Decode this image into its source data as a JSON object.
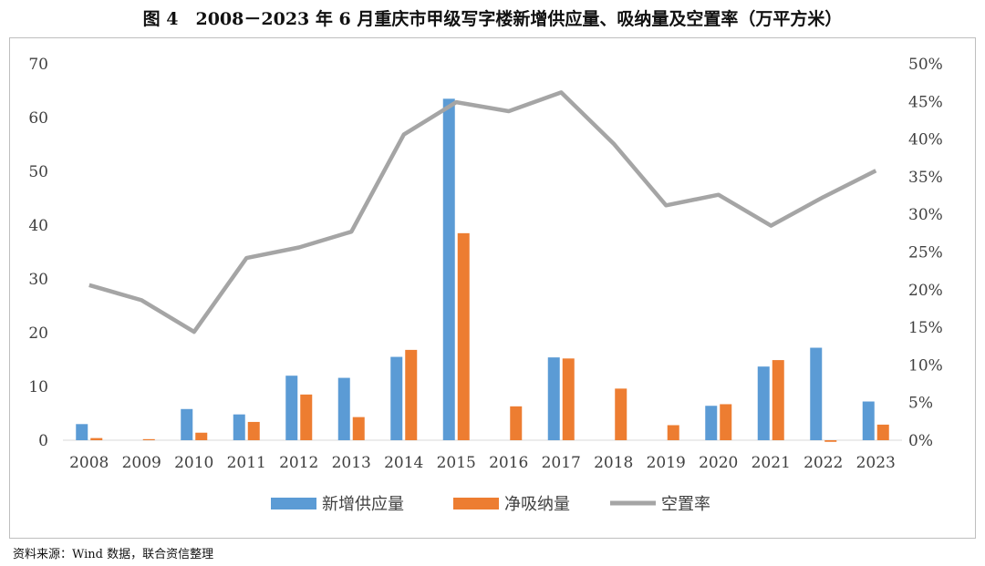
{
  "title": "图 4　2008－2023 年 6 月重庆市甲级写字楼新增供应量、吸纳量及空置率（万平方米）",
  "source": "资料来源：Wind 数据，联合资信整理",
  "chart_data": {
    "type": "bar",
    "categories": [
      "2008",
      "2009",
      "2010",
      "2011",
      "2012",
      "2013",
      "2014",
      "2015",
      "2016",
      "2017",
      "2018",
      "2019",
      "2020",
      "2021",
      "2022",
      "2023"
    ],
    "series": [
      {
        "name": "新增供应量",
        "type": "bar",
        "axis": "left",
        "color": "#5b9bd5",
        "values": [
          3.0,
          0,
          5.8,
          4.8,
          12.0,
          11.6,
          15.5,
          63.5,
          0,
          15.4,
          0,
          0,
          6.4,
          13.7,
          17.2,
          7.2
        ]
      },
      {
        "name": "净吸纳量",
        "type": "bar",
        "axis": "left",
        "color": "#ed7d31",
        "values": [
          0.4,
          0.2,
          1.4,
          3.4,
          8.5,
          4.3,
          16.8,
          38.5,
          6.3,
          15.2,
          9.6,
          2.8,
          6.7,
          14.9,
          -0.3,
          2.9
        ]
      },
      {
        "name": "空置率",
        "type": "line",
        "axis": "right",
        "color": "#a5a5a5",
        "values": [
          20.6,
          18.6,
          14.4,
          24.2,
          25.6,
          27.7,
          40.6,
          44.9,
          43.7,
          46.2,
          39.4,
          31.2,
          32.6,
          28.5,
          32.3,
          35.8
        ]
      }
    ],
    "y_left": {
      "min": 0,
      "max": 70,
      "ticks": [
        "0",
        "10",
        "20",
        "30",
        "40",
        "50",
        "60",
        "70"
      ]
    },
    "y_right": {
      "min": 0,
      "max": 50,
      "ticks": [
        "0%",
        "5%",
        "10%",
        "15%",
        "20%",
        "25%",
        "30%",
        "35%",
        "40%",
        "45%",
        "50%"
      ]
    },
    "grid": false,
    "legend": "bottom"
  }
}
